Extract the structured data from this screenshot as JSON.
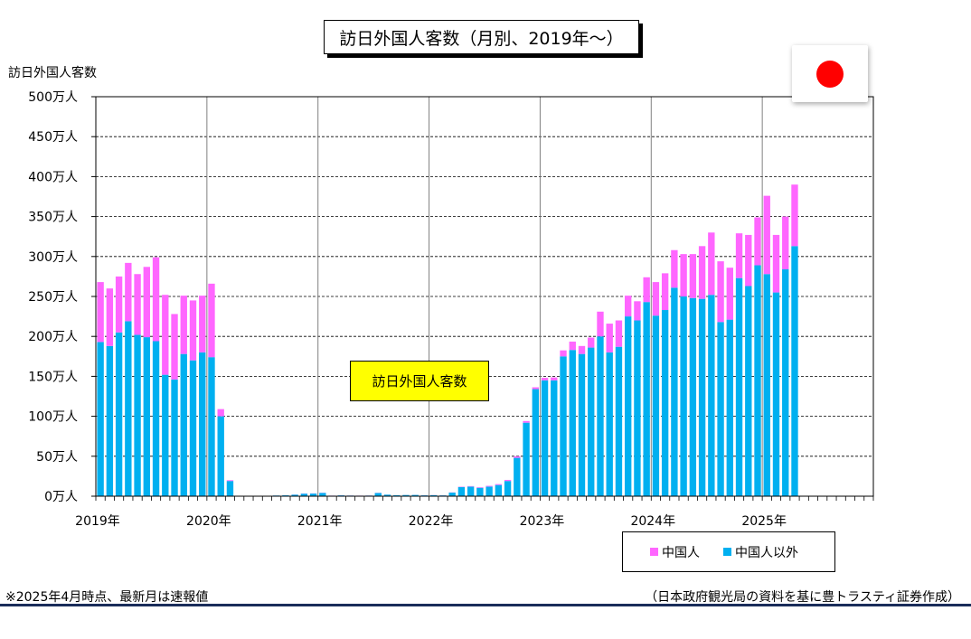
{
  "chart_data": {
    "type": "bar",
    "stacked": true,
    "title": "訪日外国人客数（月別、2019年～）",
    "ylabel": "訪日外国人客数",
    "ylim": [
      0,
      5000000
    ],
    "y_ticks": [
      {
        "value": 0,
        "label": "0万人"
      },
      {
        "value": 500000,
        "label": "50万人"
      },
      {
        "value": 1000000,
        "label": "100万人"
      },
      {
        "value": 1500000,
        "label": "150万人"
      },
      {
        "value": 2000000,
        "label": "200万人"
      },
      {
        "value": 2500000,
        "label": "250万人"
      },
      {
        "value": 3000000,
        "label": "300万人"
      },
      {
        "value": 3500000,
        "label": "350万人"
      },
      {
        "value": 4000000,
        "label": "400万人"
      },
      {
        "value": 4500000,
        "label": "450万人"
      },
      {
        "value": 5000000,
        "label": "500万人"
      }
    ],
    "x_tick_labels": [
      "2019年",
      "2020年",
      "2021年",
      "2022年",
      "2023年",
      "2024年",
      "2025年"
    ],
    "months_shown": 84,
    "grid": true,
    "legend_position": "bottom-right",
    "categories": [
      "2019-01",
      "2019-02",
      "2019-03",
      "2019-04",
      "2019-05",
      "2019-06",
      "2019-07",
      "2019-08",
      "2019-09",
      "2019-10",
      "2019-11",
      "2019-12",
      "2020-01",
      "2020-02",
      "2020-03",
      "2020-04",
      "2020-05",
      "2020-06",
      "2020-07",
      "2020-08",
      "2020-09",
      "2020-10",
      "2020-11",
      "2020-12",
      "2021-01",
      "2021-02",
      "2021-03",
      "2021-04",
      "2021-05",
      "2021-06",
      "2021-07",
      "2021-08",
      "2021-09",
      "2021-10",
      "2021-11",
      "2021-12",
      "2022-01",
      "2022-02",
      "2022-03",
      "2022-04",
      "2022-05",
      "2022-06",
      "2022-07",
      "2022-08",
      "2022-09",
      "2022-10",
      "2022-11",
      "2022-12",
      "2023-01",
      "2023-02",
      "2023-03",
      "2023-04",
      "2023-05",
      "2023-06",
      "2023-07",
      "2023-08",
      "2023-09",
      "2023-10",
      "2023-11",
      "2023-12",
      "2024-01",
      "2024-02",
      "2024-03",
      "2024-04",
      "2024-05",
      "2024-06",
      "2024-07",
      "2024-08",
      "2024-09",
      "2024-10",
      "2024-11",
      "2024-12",
      "2025-01",
      "2025-02",
      "2025-03",
      "2025-04"
    ],
    "series": [
      {
        "name": "中国人以外",
        "color": "#00b0f0",
        "values": [
          1930000,
          1880000,
          2050000,
          2190000,
          2020000,
          1990000,
          1940000,
          1520000,
          1460000,
          1780000,
          1700000,
          1800000,
          1740000,
          1000000,
          190000,
          2800,
          2000,
          2700,
          3500,
          8500,
          11000,
          19000,
          32000,
          33000,
          41000,
          6000,
          10500,
          7500,
          6000,
          7500,
          40000,
          19000,
          12000,
          15000,
          16000,
          10500,
          13000,
          10000,
          45000,
          115000,
          120000,
          105000,
          120000,
          140000,
          190000,
          480000,
          920000,
          1340000,
          1450000,
          1450000,
          1750000,
          1830000,
          1780000,
          1860000,
          2000000,
          1800000,
          1870000,
          2250000,
          2200000,
          2430000,
          2260000,
          2330000,
          2610000,
          2500000,
          2480000,
          2470000,
          2520000,
          2180000,
          2210000,
          2730000,
          2630000,
          2890000,
          2780000,
          2550000,
          2840000,
          3130000
        ]
      },
      {
        "name": "中国人",
        "color": "#ff66ff",
        "values": [
          750000,
          720000,
          700000,
          730000,
          760000,
          880000,
          1050000,
          1000000,
          820000,
          730000,
          750000,
          710000,
          920000,
          90000,
          10000,
          200,
          100,
          200,
          300,
          500,
          1000,
          1500,
          2000,
          2000,
          2000,
          1000,
          1500,
          1000,
          1000,
          1000,
          2000,
          1000,
          1000,
          1000,
          1000,
          1000,
          1500,
          1000,
          2000,
          4500,
          6000,
          7000,
          9500,
          11000,
          14000,
          19000,
          21000,
          23000,
          31000,
          36000,
          75000,
          105000,
          100000,
          125000,
          310000,
          360000,
          330000,
          260000,
          240000,
          310000,
          420000,
          460000,
          470000,
          530000,
          550000,
          660000,
          780000,
          760000,
          650000,
          560000,
          640000,
          600000,
          980000,
          720000,
          660000,
          770000
        ]
      }
    ]
  },
  "callout": "訪日外国人客数",
  "notes": {
    "left": "※2025年4月時点、最新月は速報値",
    "right": "（日本政府観光局の資料を基に豊トラスティ証券作成）"
  },
  "colors": {
    "non_china": "#00b0f0",
    "china": "#ff66ff",
    "flag_disc": "#ff0000",
    "callout_bg": "#ffff00",
    "bottom_rule": "#1a2d5a"
  },
  "icons": {
    "flag": "japan-flag-icon"
  }
}
